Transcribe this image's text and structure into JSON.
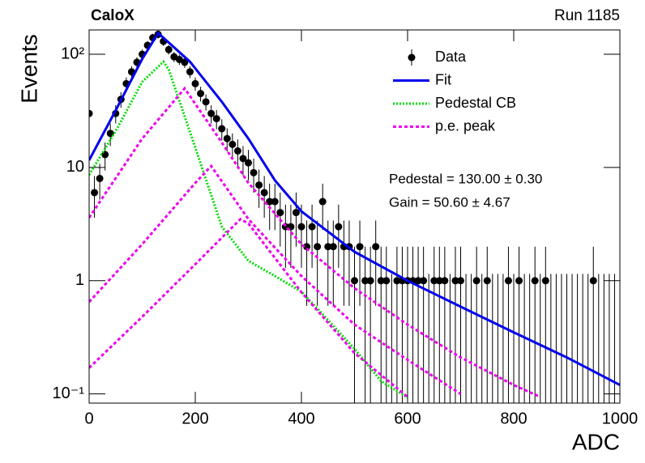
{
  "chart_data": {
    "type": "scatter",
    "title": "CaloX",
    "subtitle": "Run 1185",
    "xlabel": "ADC",
    "ylabel": "Events",
    "log_y": true,
    "xlim": [
      0,
      1000
    ],
    "ylim": [
      0.083,
      164
    ],
    "xticks": [
      0,
      200,
      400,
      600,
      800,
      1000
    ],
    "yticks": [
      {
        "value": 0.1,
        "label": "10⁻¹"
      },
      1,
      10,
      {
        "value": 100,
        "label": "10²"
      }
    ],
    "legend": "upper right",
    "annotations": [
      "Pedestal = 130.00 ± 0.30",
      "Gain = 50.60 ± 4.67"
    ],
    "series": [
      {
        "name": "Data",
        "style": "errorbar",
        "color": "#000000",
        "x": [
          0,
          10,
          20,
          30,
          40,
          50,
          60,
          70,
          80,
          90,
          100,
          110,
          120,
          130,
          140,
          150,
          160,
          170,
          180,
          190,
          200,
          210,
          220,
          230,
          240,
          250,
          260,
          270,
          280,
          290,
          300,
          310,
          320,
          330,
          340,
          350,
          360,
          370,
          380,
          390,
          400,
          410,
          420,
          430,
          440,
          450,
          460,
          470,
          480,
          490,
          500,
          510,
          520,
          530,
          540,
          550,
          560,
          570,
          580,
          590,
          600,
          610,
          620,
          630,
          640,
          650,
          660,
          670,
          680,
          690,
          700,
          710,
          720,
          730,
          740,
          750,
          760,
          770,
          780,
          790,
          800,
          810,
          820,
          830,
          840,
          850,
          860,
          870,
          880,
          890,
          900,
          910,
          920,
          930,
          940,
          950,
          960,
          970,
          980,
          990
        ],
        "values": [
          30,
          6,
          8,
          13,
          20,
          30,
          40,
          55,
          70,
          85,
          100,
          120,
          140,
          150,
          130,
          110,
          95,
          90,
          85,
          70,
          55,
          45,
          38,
          30,
          27,
          22,
          18,
          16,
          14,
          12,
          11,
          9,
          7,
          6,
          5,
          5,
          4,
          3,
          3,
          4,
          3,
          2,
          3,
          2,
          5,
          2,
          2,
          3,
          2,
          2,
          1,
          2,
          1,
          1,
          2,
          1,
          1,
          0,
          1,
          1,
          1,
          1,
          1,
          1,
          0,
          1,
          1,
          1,
          0,
          1,
          1,
          0,
          0,
          1,
          0,
          1,
          0,
          0,
          0,
          1,
          0,
          1,
          0,
          0,
          1,
          0,
          1,
          0,
          0,
          0,
          0,
          0,
          0,
          0,
          0,
          1,
          0,
          0,
          0,
          0
        ],
        "errors": [
          5.5,
          2.4,
          2.8,
          3.6,
          4.5,
          5.5,
          6.3,
          7.4,
          8.4,
          9.2,
          10,
          11,
          11.8,
          12.2,
          11.4,
          10.5,
          9.7,
          9.5,
          9.2,
          8.4,
          7.4,
          6.7,
          6.2,
          5.5,
          5.2,
          4.7,
          4.2,
          4,
          3.7,
          3.5,
          3.3,
          3,
          2.6,
          2.4,
          2.2,
          2.2,
          2,
          1.7,
          1.7,
          2,
          1.7,
          1.4,
          1.7,
          1.4,
          2.2,
          1.4,
          1.4,
          1.7,
          1.4,
          1.4,
          1,
          1.4,
          1,
          1,
          1.4,
          1,
          1,
          1.15,
          1,
          1,
          1,
          1,
          1,
          1,
          1.15,
          1,
          1,
          1,
          1.15,
          1,
          1,
          1.15,
          1.15,
          1,
          1.15,
          1,
          1.15,
          1.15,
          1.15,
          1,
          1.15,
          1,
          1.15,
          1.15,
          1,
          1.15,
          1,
          1.15,
          1.15,
          1.15,
          1.15,
          1.15,
          1.15,
          1.15,
          1.15,
          1,
          1.15,
          1.15,
          1.15,
          1.15
        ]
      },
      {
        "name": "Fit",
        "style": "solid",
        "color": "#0000ee",
        "x": [
          0,
          50,
          100,
          130,
          190,
          250,
          300,
          350,
          400,
          500,
          600,
          700,
          800,
          900,
          1000
        ],
        "values": [
          11.6,
          32,
          91,
          154,
          86,
          38,
          18,
          7.7,
          4.1,
          1.8,
          1.0,
          0.59,
          0.35,
          0.21,
          0.12
        ]
      },
      {
        "name": "Pedestal CB",
        "style": "dotted",
        "color": "#00dd00",
        "x": [
          0,
          50,
          100,
          140,
          150,
          200,
          250,
          300,
          350,
          400,
          450,
          500,
          550,
          600
        ],
        "values": [
          8.6,
          21,
          57,
          86,
          73,
          15,
          3,
          1.5,
          1.1,
          0.8,
          0.45,
          0.25,
          0.13,
          0.093
        ]
      },
      {
        "name": "p.e. peak",
        "style": "dashed",
        "color": "#ee00ee",
        "curves": [
          {
            "x": [
              0,
              100,
              180,
              250,
              300,
              400,
              500,
              600,
              700,
              800,
              850
            ],
            "values": [
              3.6,
              18,
              50,
              16.6,
              7.3,
              2.1,
              0.86,
              0.41,
              0.21,
              0.12,
              0.094
            ]
          },
          {
            "x": [
              0,
              100,
              200,
              230,
              300,
              400,
              500,
              600,
              700
            ],
            "values": [
              0.65,
              2.1,
              7.3,
              10.3,
              3.5,
              1.1,
              0.41,
              0.2,
              0.1
            ]
          },
          {
            "x": [
              0,
              100,
              200,
              285,
              300,
              400,
              500,
              600
            ],
            "values": [
              0.17,
              0.48,
              1.4,
              3.5,
              3.2,
              0.79,
              0.23,
              0.094
            ]
          }
        ]
      }
    ]
  }
}
